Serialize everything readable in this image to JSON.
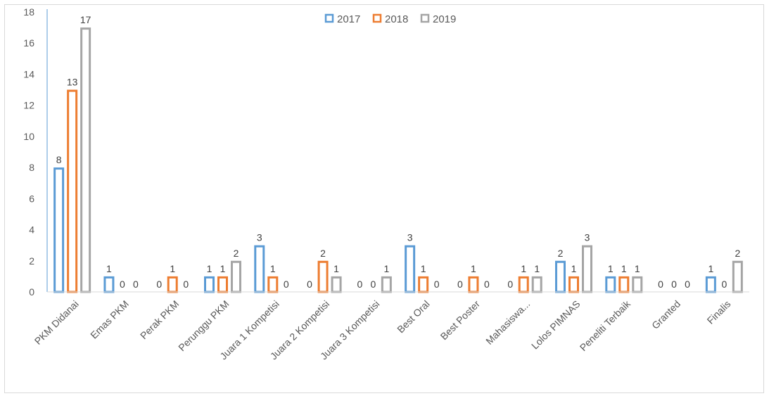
{
  "chart_data": {
    "type": "bar",
    "categories": [
      "PKM Didanai",
      "Emas PKM",
      "Perak PKM",
      "Perunggu PKM",
      "Juara 1 Kompetisi",
      "Juara 2 Kompetisi",
      "Juara 3 Kompetisi",
      "Best Oral",
      "Best Poster",
      "Mahasiswa...",
      "Lolos PIMNAS",
      "Peneliti Terbaik",
      "Granted",
      "Finalis"
    ],
    "series": [
      {
        "name": "2017",
        "color": "#5b9bd5",
        "values": [
          8,
          1,
          0,
          1,
          3,
          0,
          0,
          3,
          0,
          0,
          2,
          1,
          0,
          1
        ]
      },
      {
        "name": "2018",
        "color": "#ed7d31",
        "values": [
          13,
          0,
          1,
          1,
          1,
          2,
          0,
          1,
          1,
          1,
          1,
          1,
          0,
          0
        ]
      },
      {
        "name": "2019",
        "color": "#a5a5a5",
        "values": [
          17,
          0,
          0,
          2,
          0,
          1,
          1,
          0,
          0,
          1,
          3,
          1,
          0,
          2
        ]
      }
    ],
    "ylim": [
      0,
      18
    ],
    "yticks": [
      0,
      2,
      4,
      6,
      8,
      10,
      12,
      14,
      16,
      18
    ],
    "legend_position": "top-center",
    "bar_style": "outlined",
    "grid": false,
    "title": "",
    "xlabel": "",
    "ylabel": ""
  }
}
